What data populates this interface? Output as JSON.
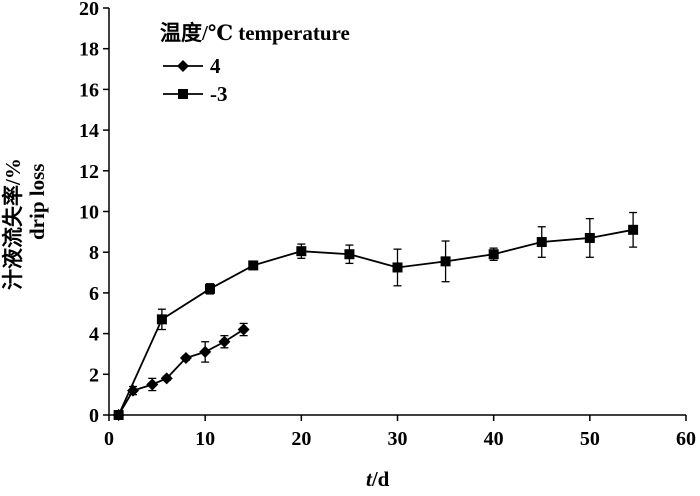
{
  "chart_data": {
    "type": "line",
    "xlabel_italic": "t",
    "xlabel_rest": "/d",
    "ylabel_zh": "汁液流失率/%",
    "ylabel_en": "drip loss",
    "legend_title": "温度/℃ temperature",
    "xlim": [
      0,
      60
    ],
    "ylim": [
      0,
      20
    ],
    "x_ticks": [
      "0",
      "10",
      "20",
      "30",
      "40",
      "50",
      "60"
    ],
    "y_ticks": [
      "0",
      "2",
      "4",
      "6",
      "8",
      "10",
      "12",
      "14",
      "16",
      "18",
      "20"
    ],
    "x_tick_values": [
      0,
      10,
      20,
      30,
      40,
      50,
      60
    ],
    "y_tick_values": [
      0,
      2,
      4,
      6,
      8,
      10,
      12,
      14,
      16,
      18,
      20
    ],
    "grid": false,
    "legend_position": "top-left",
    "series": [
      {
        "name": "4",
        "marker": "diamond",
        "color": "#000000",
        "x": [
          1,
          2.5,
          4.5,
          6,
          8,
          10,
          12,
          14
        ],
        "y": [
          0,
          1.2,
          1.5,
          1.8,
          2.8,
          3.1,
          3.6,
          4.2
        ],
        "err": [
          0,
          0.2,
          0.3,
          0.1,
          0.1,
          0.5,
          0.3,
          0.3
        ]
      },
      {
        "name": "-3",
        "marker": "square",
        "color": "#000000",
        "x": [
          1,
          5.5,
          10.5,
          15,
          20,
          25,
          30,
          35,
          40,
          45,
          50,
          54.5
        ],
        "y": [
          0,
          4.7,
          6.2,
          7.35,
          8.05,
          7.9,
          7.25,
          7.55,
          7.9,
          8.5,
          8.7,
          9.1
        ],
        "err": [
          0,
          0.5,
          0.25,
          0.1,
          0.35,
          0.45,
          0.9,
          1.0,
          0.3,
          0.75,
          0.95,
          0.85
        ]
      }
    ]
  }
}
